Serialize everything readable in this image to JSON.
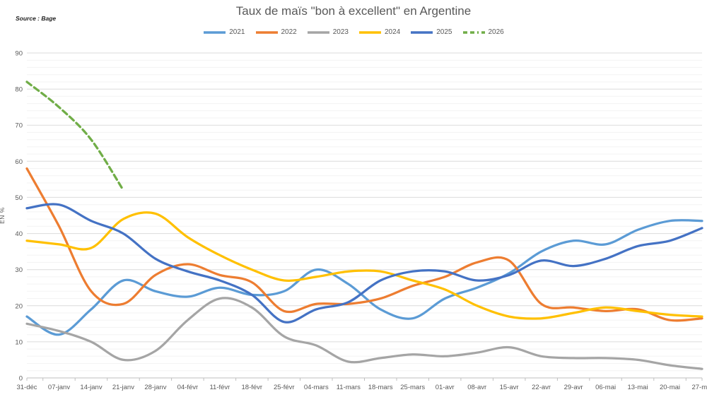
{
  "meta": {
    "source_label": "Source : Bage"
  },
  "chart_data": {
    "type": "line",
    "title": "Taux de maïs \"bon à excellent\" en Argentine",
    "xlabel": "",
    "ylabel": "EN %",
    "ylim": [
      0,
      90
    ],
    "y_major_step": 10,
    "y_minor_step": 2,
    "grid": true,
    "smooth": true,
    "legend_position": "top",
    "categories": [
      "31-déc",
      "07-janv",
      "14-janv",
      "21-janv",
      "28-janv",
      "04-févr",
      "11-févr",
      "18-févr",
      "25-févr",
      "04-mars",
      "11-mars",
      "18-mars",
      "25-mars",
      "01-avr",
      "08-avr",
      "15-avr",
      "22-avr",
      "29-avr",
      "06-mai",
      "13-mai",
      "20-mai",
      "27-mai"
    ],
    "series": [
      {
        "name": "2021",
        "color": "#5B9BD5",
        "style": "solid",
        "values": [
          17,
          12,
          19,
          27,
          24,
          22.5,
          25,
          23,
          24,
          30,
          26,
          19,
          16.5,
          22,
          25,
          29,
          35,
          38,
          37,
          41,
          43.5,
          43.5
        ]
      },
      {
        "name": "2022",
        "color": "#ED7D31",
        "style": "solid",
        "values": [
          58,
          42,
          24,
          20.5,
          28.5,
          31.5,
          28.5,
          26.5,
          18.5,
          20.5,
          20.5,
          22,
          25.5,
          28,
          32,
          32.5,
          20.5,
          19.5,
          18.5,
          19,
          16,
          16.5
        ]
      },
      {
        "name": "2023",
        "color": "#A5A5A5",
        "style": "solid",
        "values": [
          15,
          13,
          10,
          5,
          7.5,
          16,
          22,
          19.5,
          11.5,
          9,
          4.5,
          5.5,
          6.5,
          6,
          7,
          8.5,
          6,
          5.5,
          5.5,
          5,
          3.5,
          2.5
        ]
      },
      {
        "name": "2024",
        "color": "#FFC000",
        "style": "solid",
        "values": [
          38,
          37,
          36,
          44,
          45.5,
          39,
          34,
          30,
          27,
          28,
          29.5,
          29.5,
          27,
          24.5,
          20,
          17,
          16.5,
          18,
          19.5,
          18.5,
          17.5,
          17
        ]
      },
      {
        "name": "2025",
        "color": "#4472C4",
        "style": "solid",
        "values": [
          47,
          48,
          43.5,
          40,
          33,
          29.5,
          27,
          23,
          15.5,
          19,
          21,
          27,
          29.5,
          29.5,
          27,
          28.5,
          32.5,
          31,
          33,
          36.5,
          38,
          41.5
        ]
      },
      {
        "name": "2026",
        "color": "#70AD47",
        "style": "dashed",
        "values": [
          82,
          75,
          66,
          52
        ]
      }
    ]
  }
}
